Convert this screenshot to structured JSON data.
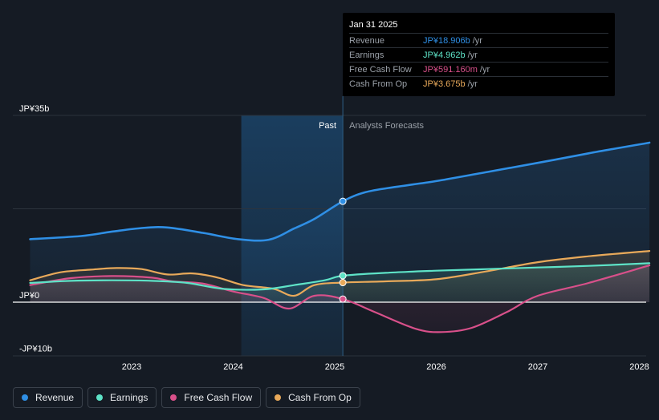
{
  "chart_data": {
    "type": "line",
    "currency_unit": "JP¥ billions",
    "y_tick_labels": [
      {
        "value": 35,
        "label": "JP¥35b"
      },
      {
        "value": 0,
        "label": "JP¥0"
      },
      {
        "value": -10,
        "label": "-JP¥10b"
      }
    ],
    "x_tick_labels": [
      {
        "value": 2023,
        "label": "2023"
      },
      {
        "value": 2024,
        "label": "2024"
      },
      {
        "value": 2025,
        "label": "2025"
      },
      {
        "value": 2026,
        "label": "2026"
      },
      {
        "value": 2027,
        "label": "2027"
      },
      {
        "value": 2028,
        "label": "2028"
      }
    ],
    "ylim": [
      -10,
      35
    ],
    "xlim": [
      2021.75,
      2028.1
    ],
    "past_label": "Past",
    "forecast_label": "Analysts Forecasts",
    "past_shade_start": 2024.08,
    "divider_x": 2025.08,
    "series": [
      {
        "name": "Revenue",
        "color": "#2f8fe5",
        "key": "revenue",
        "points": [
          [
            2022.0,
            11.8
          ],
          [
            2022.5,
            12.4
          ],
          [
            2022.8,
            13.2
          ],
          [
            2023.1,
            13.9
          ],
          [
            2023.35,
            14.0
          ],
          [
            2023.7,
            13.0
          ],
          [
            2024.05,
            11.8
          ],
          [
            2024.35,
            11.7
          ],
          [
            2024.6,
            13.8
          ],
          [
            2024.8,
            15.6
          ],
          [
            2025.08,
            18.906
          ],
          [
            2025.3,
            20.6
          ],
          [
            2025.6,
            21.6
          ],
          [
            2026.0,
            22.7
          ],
          [
            2026.5,
            24.4
          ],
          [
            2027.0,
            26.1
          ],
          [
            2027.5,
            27.9
          ],
          [
            2028.1,
            29.9
          ]
        ]
      },
      {
        "name": "Earnings",
        "color": "#5ee3c7",
        "key": "earnings",
        "points": [
          [
            2022.0,
            3.6
          ],
          [
            2022.4,
            4.0
          ],
          [
            2022.8,
            4.1
          ],
          [
            2023.2,
            4.0
          ],
          [
            2023.55,
            3.6
          ],
          [
            2023.9,
            2.5
          ],
          [
            2024.3,
            2.4
          ],
          [
            2024.6,
            3.2
          ],
          [
            2024.9,
            4.1
          ],
          [
            2025.08,
            4.962
          ],
          [
            2025.5,
            5.5
          ],
          [
            2026.0,
            5.9
          ],
          [
            2026.5,
            6.2
          ],
          [
            2027.0,
            6.5
          ],
          [
            2027.5,
            6.8
          ],
          [
            2028.1,
            7.3
          ]
        ]
      },
      {
        "name": "Free Cash Flow",
        "color": "#d8508a",
        "key": "fcf",
        "points": [
          [
            2022.0,
            3.2
          ],
          [
            2022.4,
            4.5
          ],
          [
            2022.8,
            4.9
          ],
          [
            2023.2,
            4.6
          ],
          [
            2023.4,
            3.9
          ],
          [
            2023.7,
            3.5
          ],
          [
            2024.0,
            2.0
          ],
          [
            2024.3,
            0.8
          ],
          [
            2024.55,
            -1.2
          ],
          [
            2024.8,
            1.2
          ],
          [
            2025.08,
            0.591
          ],
          [
            2025.4,
            -1.9
          ],
          [
            2025.8,
            -5.0
          ],
          [
            2026.05,
            -5.6
          ],
          [
            2026.35,
            -4.8
          ],
          [
            2026.7,
            -1.8
          ],
          [
            2027.0,
            1.2
          ],
          [
            2027.5,
            3.6
          ],
          [
            2028.1,
            6.9
          ]
        ]
      },
      {
        "name": "Cash From Op",
        "color": "#e8a95a",
        "key": "cfo",
        "points": [
          [
            2022.0,
            4.1
          ],
          [
            2022.3,
            5.6
          ],
          [
            2022.6,
            6.1
          ],
          [
            2022.85,
            6.4
          ],
          [
            2023.1,
            6.2
          ],
          [
            2023.35,
            5.2
          ],
          [
            2023.6,
            5.4
          ],
          [
            2023.85,
            4.6
          ],
          [
            2024.1,
            3.2
          ],
          [
            2024.4,
            2.5
          ],
          [
            2024.6,
            1.2
          ],
          [
            2024.8,
            3.2
          ],
          [
            2025.08,
            3.675
          ],
          [
            2025.5,
            3.9
          ],
          [
            2026.0,
            4.3
          ],
          [
            2026.5,
            5.8
          ],
          [
            2027.0,
            7.5
          ],
          [
            2027.5,
            8.6
          ],
          [
            2028.1,
            9.6
          ]
        ]
      }
    ]
  },
  "tooltip": {
    "date": "Jan 31 2025",
    "rows": [
      {
        "label": "Revenue",
        "value": "JP¥18.906b",
        "unit": "/yr",
        "color": "#2f8fe5"
      },
      {
        "label": "Earnings",
        "value": "JP¥4.962b",
        "unit": "/yr",
        "color": "#5ee3c7"
      },
      {
        "label": "Free Cash Flow",
        "value": "JP¥591.160m",
        "unit": "/yr",
        "color": "#d8508a"
      },
      {
        "label": "Cash From Op",
        "value": "JP¥3.675b",
        "unit": "/yr",
        "color": "#e8a95a"
      }
    ]
  },
  "legend": [
    {
      "label": "Revenue",
      "color": "#2f8fe5"
    },
    {
      "label": "Earnings",
      "color": "#5ee3c7"
    },
    {
      "label": "Free Cash Flow",
      "color": "#d8508a"
    },
    {
      "label": "Cash From Op",
      "color": "#e8a95a"
    }
  ],
  "colors": {
    "background": "#151b24",
    "past_shade": "#1b3550",
    "grid": "#2c333d",
    "zero_line": "#ffffff",
    "past_text": "#ffffff",
    "forecast_text": "#9aa0a8"
  }
}
